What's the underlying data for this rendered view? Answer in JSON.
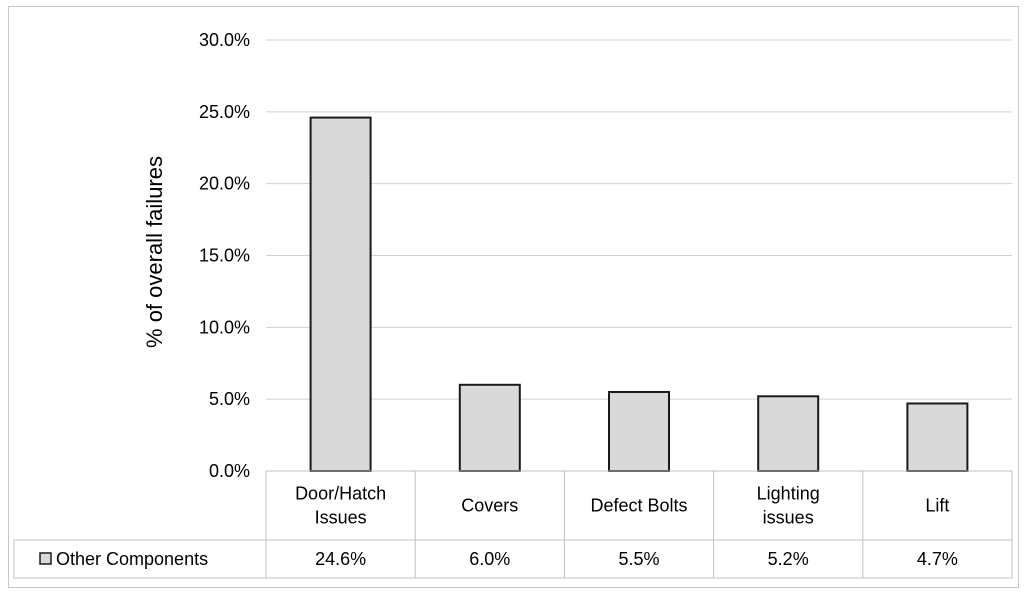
{
  "chart_data": {
    "type": "bar",
    "title": "",
    "xlabel": "",
    "ylabel": "% of overall failures",
    "ylim": [
      0,
      30
    ],
    "y_ticks": [
      "0.0%",
      "5.0%",
      "10.0%",
      "15.0%",
      "20.0%",
      "25.0%",
      "30.0%"
    ],
    "grid": true,
    "categories": [
      [
        "Door/Hatch",
        "Issues"
      ],
      [
        "Covers"
      ],
      [
        "Defect Bolts"
      ],
      [
        "Lighting",
        "issues"
      ],
      [
        "Lift"
      ]
    ],
    "series": [
      {
        "name": "Other Components",
        "values": [
          24.6,
          6.0,
          5.5,
          5.2,
          4.7
        ],
        "value_labels": [
          "24.6%",
          "6.0%",
          "5.5%",
          "5.2%",
          "4.7%"
        ],
        "color": "#d9d9d9",
        "edge_color": "#1a1a1a"
      }
    ],
    "legend": "data-table-left"
  }
}
